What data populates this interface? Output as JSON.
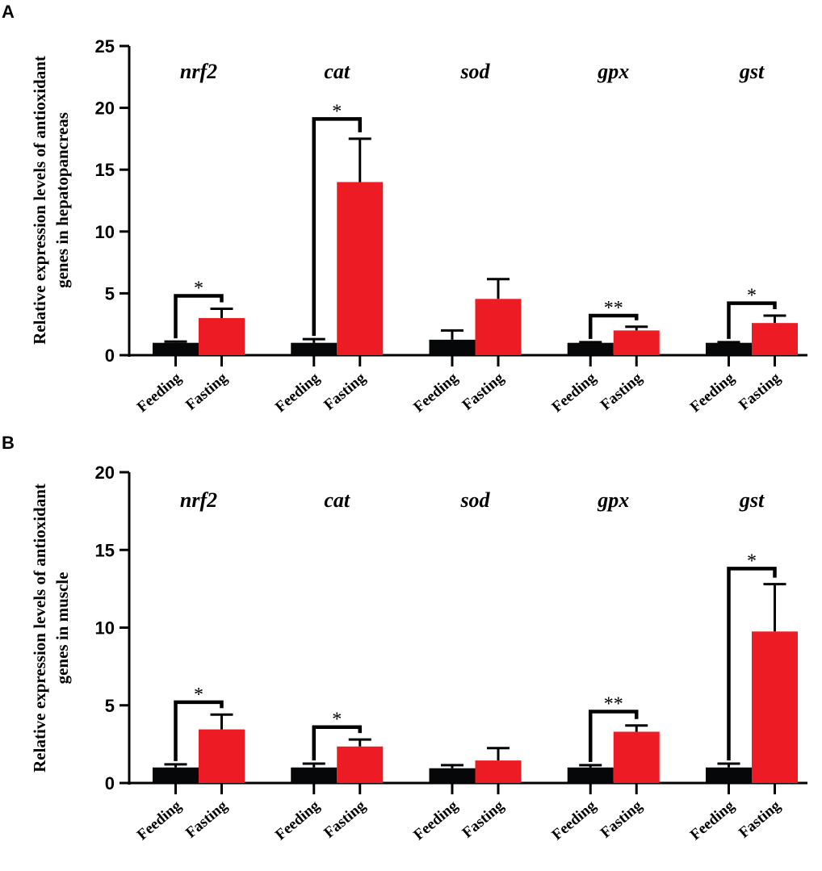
{
  "chart_data": [
    {
      "type": "bar",
      "panel_label": "A",
      "ylabel_lines": [
        "Relative expression levels of antioxidant",
        "genes in hepatopancreas"
      ],
      "ylim": [
        0,
        25
      ],
      "yticks": [
        "0",
        "5",
        "10",
        "15",
        "20",
        "25"
      ],
      "groups": [
        "nrf2",
        "cat",
        "sod",
        "gpx",
        "gst"
      ],
      "conditions": [
        "Feeding",
        "Fasting"
      ],
      "series": [
        {
          "name": "Feeding",
          "color": "#050708",
          "values": [
            1.0,
            1.0,
            1.25,
            1.0,
            1.0
          ],
          "errors": [
            0.1,
            0.3,
            0.75,
            0.05,
            0.05
          ]
        },
        {
          "name": "Fasting",
          "color": "#ED1C24",
          "values": [
            3.0,
            14.0,
            4.55,
            2.0,
            2.6
          ],
          "errors": [
            0.75,
            3.5,
            1.6,
            0.3,
            0.6
          ]
        }
      ],
      "significance": [
        {
          "group": "nrf2",
          "label": "*",
          "y": 4.8
        },
        {
          "group": "cat",
          "label": "*",
          "y": 19.1
        },
        {
          "group": "gpx",
          "label": "**",
          "y": 3.2
        },
        {
          "group": "gst",
          "label": "*",
          "y": 4.2
        }
      ]
    },
    {
      "type": "bar",
      "panel_label": "B",
      "ylabel_lines": [
        "Relative expression levels of antioxidant",
        "genes in muscle"
      ],
      "ylim": [
        0,
        20
      ],
      "yticks": [
        "0",
        "5",
        "10",
        "15",
        "20"
      ],
      "groups": [
        "nrf2",
        "cat",
        "sod",
        "gpx",
        "gst"
      ],
      "conditions": [
        "Feeding",
        "Fasting"
      ],
      "series": [
        {
          "name": "Feeding",
          "color": "#050708",
          "values": [
            1.0,
            1.0,
            0.95,
            1.0,
            1.0
          ],
          "errors": [
            0.2,
            0.25,
            0.2,
            0.15,
            0.25
          ]
        },
        {
          "name": "Fasting",
          "color": "#ED1C24",
          "values": [
            3.45,
            2.35,
            1.45,
            3.3,
            9.75
          ],
          "errors": [
            0.95,
            0.45,
            0.8,
            0.4,
            3.05
          ]
        }
      ],
      "significance": [
        {
          "group": "nrf2",
          "label": "*",
          "y": 5.2
        },
        {
          "group": "cat",
          "label": "*",
          "y": 3.6
        },
        {
          "group": "gpx",
          "label": "**",
          "y": 4.6
        },
        {
          "group": "gst",
          "label": "*",
          "y": 13.8
        }
      ]
    }
  ]
}
